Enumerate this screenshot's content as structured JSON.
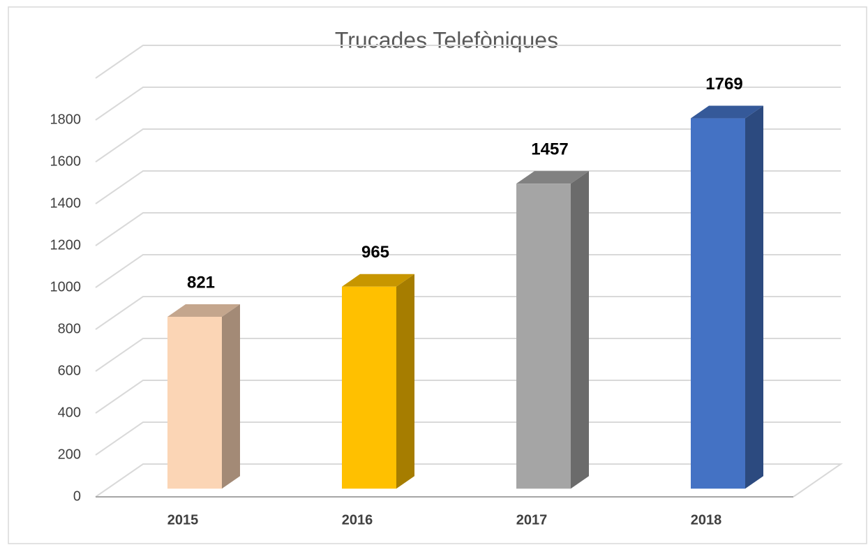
{
  "chart_data": {
    "type": "bar3d",
    "title": "Trucades Telefòniques",
    "categories": [
      "2015",
      "2016",
      "2017",
      "2018"
    ],
    "values": [
      821,
      965,
      1457,
      1769
    ],
    "colors": [
      "#fbd5b5",
      "#ffc000",
      "#a5a5a5",
      "#4472c4"
    ],
    "ylim": [
      0,
      2000
    ],
    "yticks": [
      0,
      200,
      400,
      600,
      800,
      1000,
      1200,
      1400,
      1600,
      1800
    ],
    "grid": true
  }
}
